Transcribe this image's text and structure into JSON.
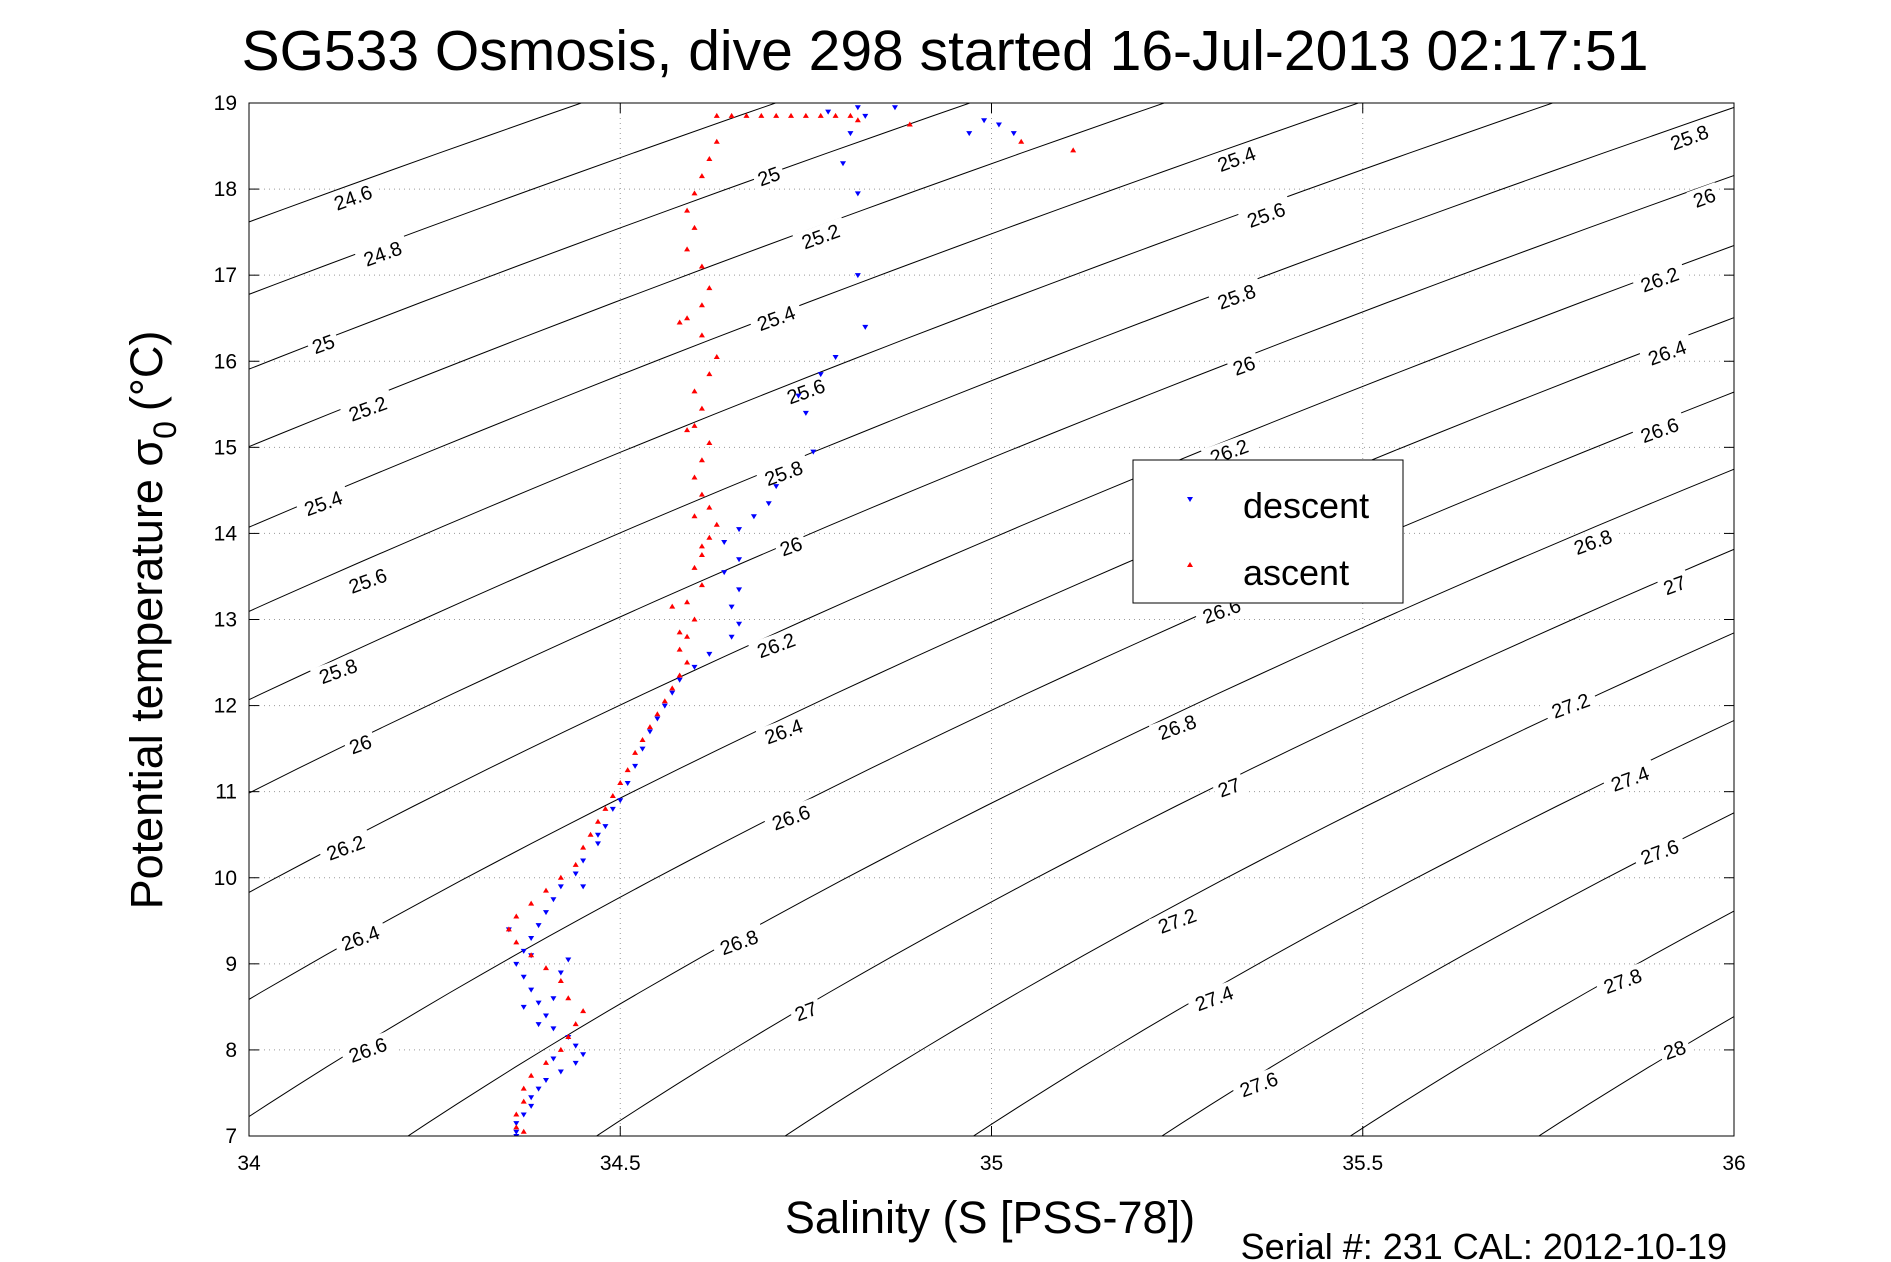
{
  "chart_data": {
    "type": "scatter",
    "title": "SG533 Osmosis, dive 298 started 16-Jul-2013 02:17:51",
    "xlabel": "Salinity (S [PSS-78])",
    "ylabel_main": "Potential temperature σ",
    "ylabel_sub": "0",
    "ylabel_unit": "(°C)",
    "xlim": [
      34,
      36
    ],
    "ylim": [
      7,
      19
    ],
    "x_ticks": [
      34,
      34.5,
      35,
      35.5,
      36
    ],
    "x_tick_labels": [
      "34",
      "34.5",
      "35",
      "35.5",
      "36"
    ],
    "y_ticks": [
      7,
      8,
      9,
      10,
      11,
      12,
      13,
      14,
      15,
      16,
      17,
      18,
      19
    ],
    "y_tick_labels": [
      "7",
      "8",
      "9",
      "10",
      "11",
      "12",
      "13",
      "14",
      "15",
      "16",
      "17",
      "18",
      "19"
    ],
    "grid": true,
    "legend_position": "center-right",
    "footer": "Serial #: 231  CAL: 2012-10-19",
    "contours": {
      "levels": [
        24.6,
        24.8,
        25,
        25.2,
        25.4,
        25.6,
        25.8,
        26,
        26.2,
        26.4,
        26.6,
        26.8,
        27,
        27.2,
        27.4,
        27.6,
        27.8,
        28
      ],
      "labels": [
        {
          "text": "24.6",
          "s": 34.14,
          "t": 17.9
        },
        {
          "text": "24.8",
          "s": 34.18,
          "t": 17.25
        },
        {
          "text": "25",
          "s": 34.1,
          "t": 16.2
        },
        {
          "text": "25.2",
          "s": 34.16,
          "t": 15.45
        },
        {
          "text": "25.4",
          "s": 34.1,
          "t": 14.35
        },
        {
          "text": "25.6",
          "s": 34.16,
          "t": 13.45
        },
        {
          "text": "25.8",
          "s": 34.12,
          "t": 12.4
        },
        {
          "text": "26",
          "s": 34.15,
          "t": 11.55
        },
        {
          "text": "26.2",
          "s": 34.13,
          "t": 10.35
        },
        {
          "text": "26.4",
          "s": 34.15,
          "t": 9.3
        },
        {
          "text": "26.6",
          "s": 34.16,
          "t": 8.0
        },
        {
          "text": "25",
          "s": 34.7,
          "t": 18.15
        },
        {
          "text": "25.2",
          "s": 34.77,
          "t": 17.45
        },
        {
          "text": "25.4",
          "s": 34.71,
          "t": 16.5
        },
        {
          "text": "25.6",
          "s": 34.75,
          "t": 15.65
        },
        {
          "text": "25.8",
          "s": 34.72,
          "t": 14.7
        },
        {
          "text": "26",
          "s": 34.73,
          "t": 13.85
        },
        {
          "text": "26.2",
          "s": 34.71,
          "t": 12.7
        },
        {
          "text": "26.4",
          "s": 34.72,
          "t": 11.7
        },
        {
          "text": "26.6",
          "s": 34.73,
          "t": 10.7
        },
        {
          "text": "26.8",
          "s": 34.66,
          "t": 9.25
        },
        {
          "text": "27",
          "s": 34.75,
          "t": 8.45
        },
        {
          "text": "25.4",
          "s": 35.33,
          "t": 18.35
        },
        {
          "text": "25.6",
          "s": 35.37,
          "t": 17.7
        },
        {
          "text": "25.8",
          "s": 35.33,
          "t": 16.75
        },
        {
          "text": "26",
          "s": 35.34,
          "t": 15.95
        },
        {
          "text": "26.2",
          "s": 35.32,
          "t": 14.95
        },
        {
          "text": "26.6",
          "s": 35.31,
          "t": 13.1
        },
        {
          "text": "26.8",
          "s": 35.25,
          "t": 11.75
        },
        {
          "text": "27",
          "s": 35.32,
          "t": 11.05
        },
        {
          "text": "27.2",
          "s": 35.25,
          "t": 9.5
        },
        {
          "text": "27.4",
          "s": 35.3,
          "t": 8.6
        },
        {
          "text": "27.6",
          "s": 35.36,
          "t": 7.6
        },
        {
          "text": "25.8",
          "s": 35.94,
          "t": 18.6
        },
        {
          "text": "26",
          "s": 35.96,
          "t": 17.9
        },
        {
          "text": "26.2",
          "s": 35.9,
          "t": 16.95
        },
        {
          "text": "26.4",
          "s": 35.91,
          "t": 16.1
        },
        {
          "text": "26.6",
          "s": 35.9,
          "t": 15.2
        },
        {
          "text": "26.8",
          "s": 35.81,
          "t": 13.9
        },
        {
          "text": "27",
          "s": 35.92,
          "t": 13.4
        },
        {
          "text": "27.2",
          "s": 35.78,
          "t": 12.0
        },
        {
          "text": "27.4",
          "s": 35.86,
          "t": 11.15
        },
        {
          "text": "27.6",
          "s": 35.9,
          "t": 10.3
        },
        {
          "text": "27.8",
          "s": 35.85,
          "t": 8.8
        },
        {
          "text": "28",
          "s": 35.92,
          "t": 8.0
        }
      ]
    },
    "series": [
      {
        "name": "descent",
        "color": "#0000ff",
        "marker": "triangle-down",
        "points": [
          [
            34.82,
            18.95
          ],
          [
            34.87,
            18.95
          ],
          [
            34.83,
            18.85
          ],
          [
            34.78,
            18.9
          ],
          [
            34.99,
            18.8
          ],
          [
            35.01,
            18.75
          ],
          [
            34.97,
            18.65
          ],
          [
            35.03,
            18.65
          ],
          [
            34.81,
            18.65
          ],
          [
            34.8,
            18.3
          ],
          [
            34.82,
            17.95
          ],
          [
            34.82,
            17.0
          ],
          [
            34.83,
            16.4
          ],
          [
            34.79,
            16.05
          ],
          [
            34.77,
            15.85
          ],
          [
            34.74,
            15.6
          ],
          [
            34.75,
            15.4
          ],
          [
            34.76,
            14.95
          ],
          [
            34.71,
            14.55
          ],
          [
            34.7,
            14.35
          ],
          [
            34.68,
            14.2
          ],
          [
            34.66,
            14.05
          ],
          [
            34.64,
            13.9
          ],
          [
            34.66,
            13.7
          ],
          [
            34.64,
            13.55
          ],
          [
            34.66,
            13.35
          ],
          [
            34.65,
            13.15
          ],
          [
            34.66,
            12.95
          ],
          [
            34.65,
            12.8
          ],
          [
            34.62,
            12.6
          ],
          [
            34.6,
            12.45
          ],
          [
            34.58,
            12.3
          ],
          [
            34.57,
            12.15
          ],
          [
            34.56,
            12.0
          ],
          [
            34.55,
            11.85
          ],
          [
            34.54,
            11.7
          ],
          [
            34.53,
            11.5
          ],
          [
            34.52,
            11.3
          ],
          [
            34.51,
            11.1
          ],
          [
            34.5,
            10.9
          ],
          [
            34.49,
            10.8
          ],
          [
            34.48,
            10.6
          ],
          [
            34.47,
            10.4
          ],
          [
            34.45,
            10.2
          ],
          [
            34.44,
            10.05
          ],
          [
            34.42,
            9.9
          ],
          [
            34.41,
            9.75
          ],
          [
            34.4,
            9.6
          ],
          [
            34.39,
            9.45
          ],
          [
            34.38,
            9.3
          ],
          [
            34.37,
            9.15
          ],
          [
            34.36,
            9.0
          ],
          [
            34.37,
            8.85
          ],
          [
            34.38,
            8.7
          ],
          [
            34.39,
            8.55
          ],
          [
            34.4,
            8.4
          ],
          [
            34.41,
            8.25
          ],
          [
            34.43,
            8.15
          ],
          [
            34.44,
            8.05
          ],
          [
            34.45,
            7.95
          ],
          [
            34.44,
            7.85
          ],
          [
            34.42,
            7.75
          ],
          [
            34.4,
            7.65
          ],
          [
            34.39,
            7.55
          ],
          [
            34.38,
            7.45
          ],
          [
            34.38,
            7.35
          ],
          [
            34.37,
            7.25
          ],
          [
            34.36,
            7.15
          ],
          [
            34.36,
            7.05
          ],
          [
            34.36,
            7.0
          ],
          [
            34.41,
            8.6
          ],
          [
            34.42,
            8.9
          ],
          [
            34.43,
            9.05
          ],
          [
            34.39,
            8.3
          ],
          [
            34.41,
            7.9
          ],
          [
            34.37,
            8.5
          ],
          [
            34.38,
            9.1
          ],
          [
            34.35,
            9.4
          ],
          [
            34.45,
            9.9
          ],
          [
            34.47,
            10.5
          ]
        ]
      },
      {
        "name": "ascent",
        "color": "#ff0000",
        "marker": "triangle-up",
        "points": [
          [
            34.63,
            18.85
          ],
          [
            34.65,
            18.85
          ],
          [
            34.67,
            18.85
          ],
          [
            34.69,
            18.85
          ],
          [
            34.71,
            18.85
          ],
          [
            34.73,
            18.85
          ],
          [
            34.75,
            18.85
          ],
          [
            34.77,
            18.85
          ],
          [
            34.79,
            18.85
          ],
          [
            34.81,
            18.85
          ],
          [
            34.82,
            18.8
          ],
          [
            34.89,
            18.75
          ],
          [
            35.04,
            18.55
          ],
          [
            35.11,
            18.45
          ],
          [
            34.63,
            18.55
          ],
          [
            34.62,
            18.35
          ],
          [
            34.61,
            18.15
          ],
          [
            34.6,
            17.95
          ],
          [
            34.59,
            17.75
          ],
          [
            34.6,
            17.55
          ],
          [
            34.59,
            17.3
          ],
          [
            34.61,
            17.1
          ],
          [
            34.62,
            16.85
          ],
          [
            34.61,
            16.65
          ],
          [
            34.59,
            16.5
          ],
          [
            34.61,
            16.3
          ],
          [
            34.63,
            16.05
          ],
          [
            34.62,
            15.85
          ],
          [
            34.6,
            15.65
          ],
          [
            34.61,
            15.45
          ],
          [
            34.6,
            15.25
          ],
          [
            34.62,
            15.05
          ],
          [
            34.61,
            14.85
          ],
          [
            34.6,
            14.65
          ],
          [
            34.61,
            14.45
          ],
          [
            34.62,
            14.3
          ],
          [
            34.63,
            14.1
          ],
          [
            34.62,
            13.95
          ],
          [
            34.61,
            13.85
          ],
          [
            34.6,
            13.6
          ],
          [
            34.61,
            13.4
          ],
          [
            34.59,
            13.2
          ],
          [
            34.6,
            13.0
          ],
          [
            34.59,
            12.8
          ],
          [
            34.58,
            12.65
          ],
          [
            34.59,
            12.5
          ],
          [
            34.58,
            12.35
          ],
          [
            34.57,
            12.2
          ],
          [
            34.56,
            12.05
          ],
          [
            34.55,
            11.9
          ],
          [
            34.54,
            11.75
          ],
          [
            34.53,
            11.6
          ],
          [
            34.52,
            11.45
          ],
          [
            34.51,
            11.25
          ],
          [
            34.5,
            11.1
          ],
          [
            34.49,
            10.95
          ],
          [
            34.48,
            10.8
          ],
          [
            34.47,
            10.65
          ],
          [
            34.46,
            10.5
          ],
          [
            34.45,
            10.35
          ],
          [
            34.44,
            10.15
          ],
          [
            34.42,
            10.0
          ],
          [
            34.4,
            9.85
          ],
          [
            34.38,
            9.7
          ],
          [
            34.36,
            9.55
          ],
          [
            34.35,
            9.4
          ],
          [
            34.36,
            9.25
          ],
          [
            34.38,
            9.1
          ],
          [
            34.4,
            8.95
          ],
          [
            34.42,
            8.8
          ],
          [
            34.43,
            8.6
          ],
          [
            34.45,
            8.45
          ],
          [
            34.44,
            8.3
          ],
          [
            34.43,
            8.15
          ],
          [
            34.42,
            8.0
          ],
          [
            34.4,
            7.85
          ],
          [
            34.38,
            7.7
          ],
          [
            34.37,
            7.55
          ],
          [
            34.37,
            7.4
          ],
          [
            34.36,
            7.25
          ],
          [
            34.36,
            7.1
          ],
          [
            34.37,
            7.05
          ],
          [
            34.58,
            12.85
          ],
          [
            34.57,
            13.15
          ],
          [
            34.61,
            13.75
          ],
          [
            34.6,
            14.2
          ],
          [
            34.59,
            15.2
          ],
          [
            34.58,
            16.45
          ]
        ]
      }
    ]
  }
}
